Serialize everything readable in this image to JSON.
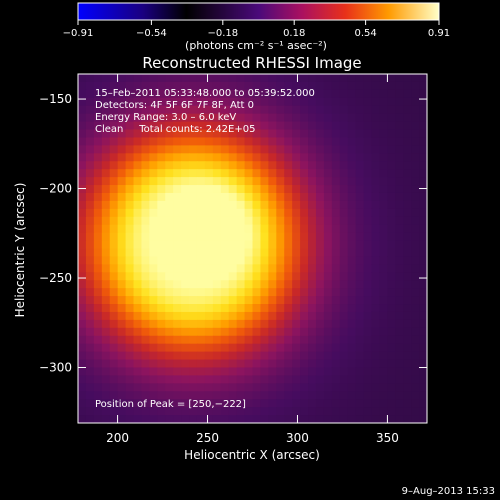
{
  "chart_data": {
    "type": "heatmap",
    "title": "Reconstructed RHESSI Image",
    "xlabel": "Heliocentric X (arcsec)",
    "ylabel": "Heliocentric Y (arcsec)",
    "xlim": [
      178,
      372
    ],
    "ylim": [
      -331,
      -136
    ],
    "x_ticks": [
      200,
      250,
      300,
      350
    ],
    "y_ticks": [
      -150,
      -200,
      -250,
      -300
    ],
    "x_tick_labels": [
      "200",
      "250",
      "300",
      "350"
    ],
    "y_tick_labels": [
      "−150",
      "−200",
      "−250",
      "−300"
    ],
    "colorbar": {
      "range": [
        -0.91,
        0.91
      ],
      "ticks": [
        -0.91,
        -0.54,
        -0.18,
        0.18,
        0.54,
        0.91
      ],
      "tick_labels": [
        "−0.91",
        "−0.54",
        "−0.18",
        "0.18",
        "0.54",
        "0.91"
      ],
      "units_label": "(photons cm⁻² s⁻¹ asec⁻²)"
    },
    "source": {
      "peak_position": [
        250,
        -222
      ],
      "center_x": 242,
      "center_y": -230,
      "radius_x": 57,
      "radius_y": 59,
      "peak_value": 0.91,
      "background_value": 0.06
    },
    "annotations": [
      "15–Feb–2011 05:33:48.000  to  05:39:52.000",
      "Detectors: 4F 5F 6F 7F 8F, Att 0",
      "Energy Range: 3.0 – 6.0 keV",
      "Clean     Total counts: 2.42E+05"
    ],
    "peak_label": "Position of Peak = [250,−222]",
    "footer_date": "9–Aug–2013 15:33"
  }
}
